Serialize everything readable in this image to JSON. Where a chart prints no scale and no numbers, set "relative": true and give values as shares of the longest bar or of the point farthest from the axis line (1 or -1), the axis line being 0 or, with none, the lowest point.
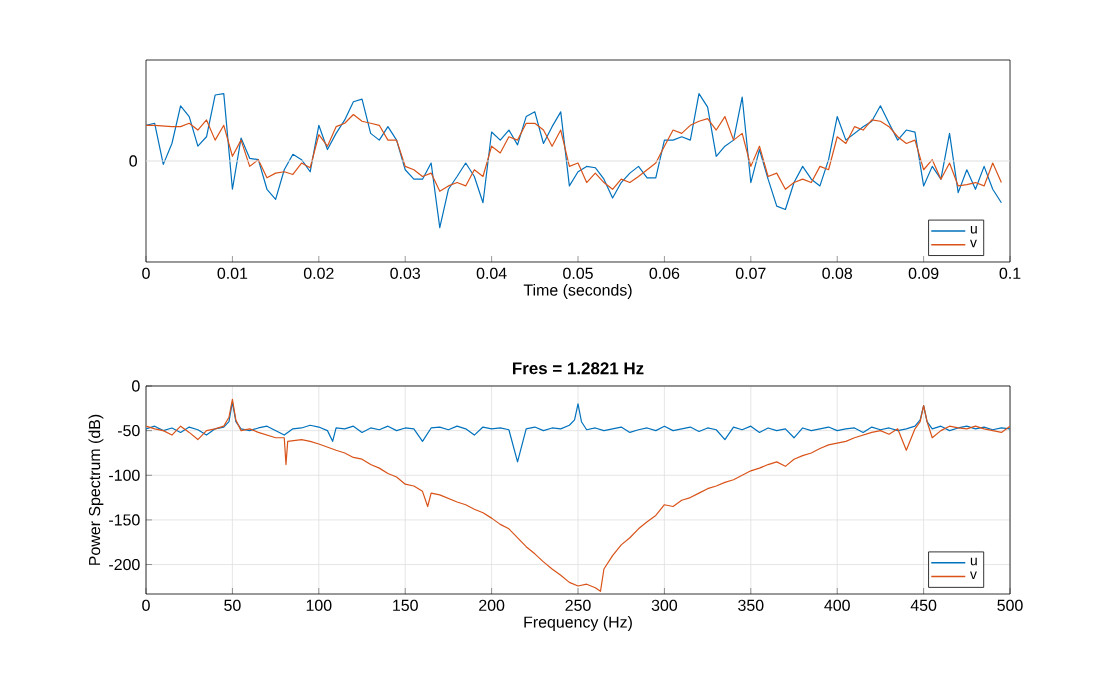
{
  "chart_data": [
    {
      "type": "line",
      "relative": true,
      "xlabel": "Time (seconds)",
      "xlim": [
        0,
        0.1
      ],
      "xticks": [
        0,
        0.01,
        0.02,
        0.03,
        0.04,
        0.05,
        0.06,
        0.07,
        0.08,
        0.09,
        0.1
      ],
      "ref_lines": [
        {
          "axis": "y",
          "value": 0,
          "label": "0",
          "color": "#dfdfdf"
        }
      ],
      "legend": "bottom right",
      "x": [
        0,
        0.001,
        0.002,
        0.003,
        0.004,
        0.005,
        0.006,
        0.007,
        0.008,
        0.009,
        0.01,
        0.011,
        0.012,
        0.013,
        0.014,
        0.015,
        0.016,
        0.017,
        0.018,
        0.019,
        0.02,
        0.021,
        0.022,
        0.023,
        0.024,
        0.025,
        0.026,
        0.027,
        0.028,
        0.029,
        0.03,
        0.031,
        0.032,
        0.033,
        0.034,
        0.035,
        0.036,
        0.037,
        0.038,
        0.039,
        0.04,
        0.041,
        0.042,
        0.043,
        0.044,
        0.045,
        0.046,
        0.047,
        0.048,
        0.049,
        0.05,
        0.051,
        0.052,
        0.053,
        0.054,
        0.055,
        0.056,
        0.057,
        0.058,
        0.059,
        0.06,
        0.061,
        0.062,
        0.063,
        0.064,
        0.065,
        0.066,
        0.067,
        0.068,
        0.069,
        0.07,
        0.071,
        0.072,
        0.073,
        0.074,
        0.075,
        0.076,
        0.077,
        0.078,
        0.079,
        0.08,
        0.081,
        0.082,
        0.083,
        0.084,
        0.085,
        0.086,
        0.087,
        0.088,
        0.089,
        0.09,
        0.091,
        0.092,
        0.093,
        0.094,
        0.095,
        0.096,
        0.097,
        0.098,
        0.099
      ],
      "series": [
        {
          "name": "u",
          "color": "#0072bd",
          "values": [
            0.53,
            0.56,
            -0.05,
            0.26,
            0.82,
            0.66,
            0.22,
            0.36,
            0.98,
            1.0,
            -0.42,
            0.34,
            0.04,
            0.02,
            -0.42,
            -0.57,
            -0.13,
            0.1,
            0.02,
            -0.16,
            0.53,
            0.17,
            0.41,
            0.61,
            0.88,
            0.92,
            0.41,
            0.31,
            0.51,
            0.31,
            -0.13,
            -0.27,
            -0.27,
            -0.03,
            -0.99,
            -0.42,
            -0.23,
            -0.03,
            -0.23,
            -0.62,
            0.43,
            0.31,
            0.46,
            0.24,
            0.66,
            0.73,
            0.26,
            0.51,
            0.73,
            -0.37,
            -0.16,
            -0.08,
            -0.1,
            -0.27,
            -0.55,
            -0.32,
            -0.18,
            -0.08,
            -0.25,
            -0.25,
            0.31,
            0.31,
            0.36,
            0.31,
            1.0,
            0.8,
            0.07,
            0.22,
            0.31,
            0.95,
            -0.32,
            0.17,
            -0.27,
            -0.67,
            -0.72,
            -0.32,
            -0.08,
            -0.27,
            -0.37,
            0.02,
            0.66,
            0.31,
            0.41,
            0.51,
            0.59,
            0.82,
            0.56,
            0.31,
            0.46,
            0.43,
            -0.37,
            -0.08,
            -0.27,
            0.41,
            -0.47,
            -0.13,
            -0.42,
            -0.08,
            -0.42,
            -0.62
          ]
        },
        {
          "name": "v",
          "color": "#d95319",
          "values": [
            0.53,
            0.53,
            0.52,
            0.51,
            0.51,
            0.56,
            0.46,
            0.61,
            0.31,
            0.53,
            0.07,
            0.31,
            -0.08,
            0.02,
            -0.25,
            -0.18,
            -0.16,
            -0.2,
            -0.03,
            -0.1,
            0.39,
            0.22,
            0.51,
            0.56,
            0.69,
            0.59,
            0.56,
            0.53,
            0.31,
            0.31,
            -0.08,
            -0.13,
            -0.23,
            -0.18,
            -0.45,
            -0.37,
            -0.32,
            -0.37,
            -0.13,
            -0.23,
            0.22,
            0.12,
            0.36,
            0.31,
            0.56,
            0.56,
            0.46,
            0.22,
            0.46,
            -0.08,
            -0.03,
            -0.32,
            -0.18,
            -0.32,
            -0.42,
            -0.27,
            -0.32,
            -0.23,
            -0.13,
            -0.03,
            0.22,
            0.46,
            0.41,
            0.53,
            0.59,
            0.63,
            0.46,
            0.66,
            0.31,
            0.41,
            -0.08,
            0.22,
            -0.23,
            -0.18,
            -0.42,
            -0.32,
            -0.27,
            -0.32,
            -0.08,
            -0.13,
            0.36,
            0.26,
            0.51,
            0.46,
            0.61,
            0.59,
            0.51,
            0.36,
            0.26,
            0.31,
            -0.13,
            0.02,
            -0.27,
            -0.03,
            -0.37,
            -0.35,
            -0.32,
            -0.37,
            -0.03,
            -0.32
          ]
        }
      ]
    },
    {
      "type": "line",
      "title": "**Fres = 1.2821 Hz**",
      "xlabel": "Frequency (Hz)",
      "ylabel": "Power Spectrum (dB)",
      "xlim": [
        0,
        500
      ],
      "ylim": [
        -233,
        0
      ],
      "xticks": [
        0,
        50,
        100,
        150,
        200,
        250,
        300,
        350,
        400,
        450,
        500
      ],
      "yticks": [
        -200,
        -150,
        -100,
        -50,
        0
      ],
      "grid": true,
      "legend": "bottom right",
      "series": [
        {
          "name": "u",
          "color": "#0072bd",
          "x": [
            0,
            5,
            10,
            15,
            20,
            25,
            30,
            35,
            40,
            45,
            48,
            50,
            52,
            55,
            60,
            65,
            70,
            75,
            80,
            85,
            90,
            95,
            100,
            105,
            108,
            110,
            115,
            120,
            125,
            130,
            135,
            140,
            145,
            150,
            155,
            160,
            165,
            170,
            175,
            180,
            185,
            190,
            195,
            200,
            205,
            210,
            215,
            220,
            225,
            230,
            235,
            240,
            245,
            248,
            250,
            252,
            255,
            260,
            265,
            270,
            275,
            280,
            285,
            290,
            295,
            300,
            305,
            310,
            315,
            320,
            325,
            330,
            335,
            340,
            345,
            350,
            355,
            360,
            365,
            370,
            375,
            380,
            385,
            390,
            395,
            400,
            405,
            410,
            415,
            420,
            425,
            430,
            435,
            440,
            445,
            448,
            450,
            452,
            455,
            460,
            465,
            470,
            475,
            480,
            485,
            490,
            495,
            500
          ],
          "values": [
            -48,
            -45,
            -50,
            -47,
            -52,
            -46,
            -49,
            -55,
            -48,
            -46,
            -40,
            -18,
            -40,
            -48,
            -50,
            -47,
            -45,
            -50,
            -55,
            -48,
            -47,
            -44,
            -46,
            -50,
            -62,
            -47,
            -48,
            -45,
            -52,
            -47,
            -49,
            -45,
            -50,
            -47,
            -48,
            -62,
            -47,
            -46,
            -49,
            -45,
            -48,
            -55,
            -46,
            -48,
            -47,
            -49,
            -85,
            -48,
            -46,
            -50,
            -47,
            -48,
            -44,
            -38,
            -20,
            -40,
            -49,
            -47,
            -50,
            -48,
            -46,
            -52,
            -49,
            -47,
            -50,
            -45,
            -50,
            -48,
            -46,
            -51,
            -47,
            -49,
            -60,
            -46,
            -49,
            -45,
            -52,
            -47,
            -50,
            -48,
            -58,
            -47,
            -50,
            -48,
            -46,
            -50,
            -48,
            -47,
            -52,
            -46,
            -49,
            -47,
            -50,
            -48,
            -45,
            -38,
            -22,
            -40,
            -48,
            -45,
            -50,
            -47,
            -45,
            -48,
            -46,
            -49,
            -47,
            -48
          ]
        },
        {
          "name": "v",
          "color": "#d95319",
          "x": [
            0,
            5,
            10,
            15,
            20,
            25,
            30,
            35,
            40,
            45,
            48,
            50,
            52,
            55,
            60,
            65,
            70,
            75,
            80,
            81,
            82,
            90,
            95,
            100,
            110,
            115,
            120,
            125,
            130,
            135,
            140,
            145,
            150,
            155,
            160,
            163,
            165,
            170,
            175,
            180,
            185,
            190,
            195,
            200,
            205,
            210,
            215,
            220,
            225,
            230,
            235,
            240,
            245,
            250,
            255,
            260,
            263,
            265,
            270,
            275,
            280,
            285,
            290,
            295,
            300,
            305,
            310,
            315,
            320,
            325,
            330,
            335,
            340,
            345,
            350,
            355,
            360,
            365,
            370,
            375,
            380,
            385,
            390,
            395,
            400,
            405,
            410,
            415,
            420,
            425,
            430,
            435,
            440,
            445,
            448,
            450,
            452,
            455,
            460,
            465,
            470,
            475,
            480,
            485,
            490,
            495,
            500
          ],
          "values": [
            -45,
            -48,
            -50,
            -55,
            -45,
            -52,
            -60,
            -50,
            -48,
            -45,
            -35,
            -15,
            -38,
            -50,
            -48,
            -52,
            -55,
            -58,
            -58,
            -88,
            -62,
            -60,
            -62,
            -65,
            -72,
            -75,
            -80,
            -82,
            -88,
            -92,
            -98,
            -102,
            -110,
            -112,
            -118,
            -135,
            -120,
            -122,
            -126,
            -130,
            -133,
            -138,
            -142,
            -148,
            -155,
            -160,
            -170,
            -180,
            -188,
            -197,
            -205,
            -212,
            -220,
            -224,
            -222,
            -226,
            -230,
            -205,
            -190,
            -178,
            -170,
            -160,
            -152,
            -145,
            -133,
            -135,
            -128,
            -125,
            -120,
            -115,
            -112,
            -108,
            -105,
            -100,
            -95,
            -92,
            -88,
            -85,
            -90,
            -82,
            -78,
            -75,
            -70,
            -66,
            -64,
            -62,
            -58,
            -55,
            -52,
            -50,
            -54,
            -48,
            -72,
            -48,
            -40,
            -22,
            -40,
            -58,
            -50,
            -45,
            -47,
            -48,
            -45,
            -48,
            -50,
            -52,
            -45
          ]
        }
      ]
    }
  ]
}
